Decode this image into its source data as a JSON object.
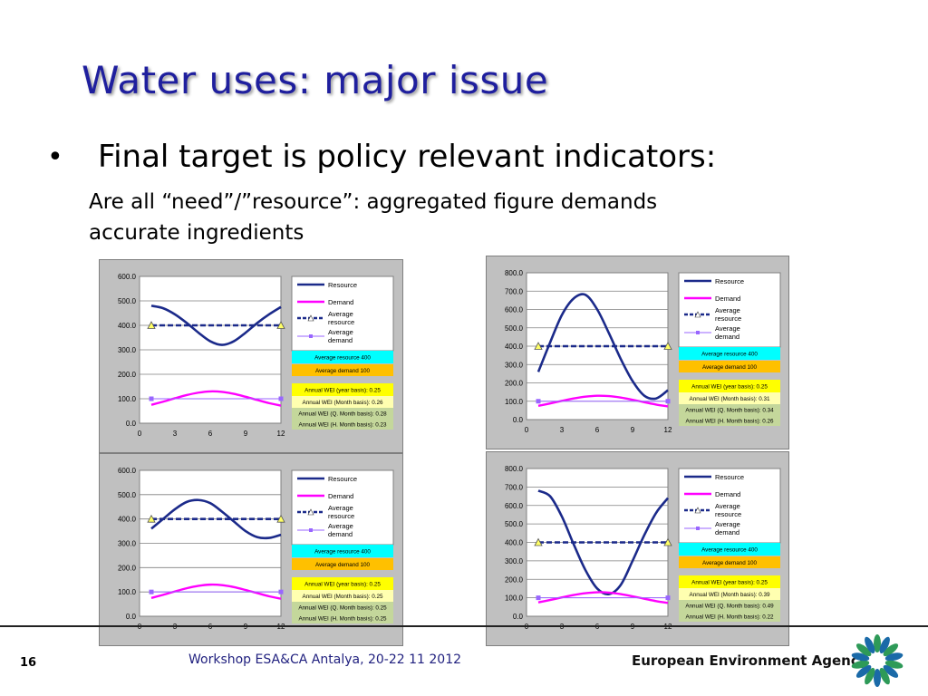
{
  "slide": {
    "title": "Water uses: major issue",
    "bullet_symbol": "•",
    "bullet": "Final target is policy relevant indicators:",
    "sub_line1": "Are all “need”/”resource”: aggregated figure demands",
    "sub_line2": "accurate ingredients",
    "page_number": "16",
    "footer": "Workshop ESA&CA Antalya, 20-22 11 2012",
    "agency": "European Environment Agency",
    "logo_icon": "eea-logo-icon"
  },
  "colors": {
    "resource": "#1b2a8a",
    "demand": "#ff00ff",
    "avg_resource": "#1b2a8a",
    "avg_demand": "#9966ff",
    "box_cyan": "#00ffff",
    "box_orange": "#ffc000",
    "box_yellow": "#ffff00",
    "box_pale": "#ffffb0",
    "box_green": "#c4d79b",
    "logo_green": "#2e9a58",
    "logo_blue": "#1a6aa8"
  },
  "legend": [
    "Resource",
    "Demand",
    "Average resource",
    "Average demand"
  ],
  "chart_data": [
    {
      "type": "line",
      "x": [
        1,
        2,
        3,
        4,
        5,
        6,
        7,
        8,
        9,
        10,
        11,
        12
      ],
      "ylim": [
        0,
        600
      ],
      "yticks": [
        "600.0",
        "500.0",
        "400.0",
        "300.0",
        "200.0",
        "100.0",
        "0.0"
      ],
      "xticks": [
        "0",
        "3",
        "6",
        "9",
        "12"
      ],
      "series": [
        {
          "name": "Resource",
          "values": [
            480,
            470,
            445,
            410,
            370,
            335,
            320,
            335,
            370,
            410,
            445,
            475
          ]
        },
        {
          "name": "Demand",
          "values": [
            75,
            88,
            102,
            115,
            125,
            130,
            128,
            120,
            108,
            95,
            82,
            72
          ]
        },
        {
          "name": "Average resource",
          "values": [
            400,
            400,
            400,
            400,
            400,
            400,
            400,
            400,
            400,
            400,
            400,
            400
          ]
        },
        {
          "name": "Average demand",
          "values": [
            100,
            100,
            100,
            100,
            100,
            100,
            100,
            100,
            100,
            100,
            100,
            100
          ]
        }
      ],
      "info": [
        "Average resource 400",
        "Average demand 100",
        "Annual WEI (year basis): 0.25",
        "Annual WEI (Month basis): 0.26",
        "Annual WEI (Q. Month basis): 0.28",
        "Annual WEI (H. Month basis): 0.23"
      ]
    },
    {
      "type": "line",
      "x": [
        1,
        2,
        3,
        4,
        5,
        6,
        7,
        8,
        9,
        10,
        11,
        12
      ],
      "ylim": [
        0,
        800
      ],
      "yticks": [
        "800.0",
        "700.0",
        "600.0",
        "500.0",
        "400.0",
        "300.0",
        "200.0",
        "100.0",
        "0.0"
      ],
      "xticks": [
        "0",
        "3",
        "6",
        "9",
        "12"
      ],
      "series": [
        {
          "name": "Resource",
          "values": [
            260,
            420,
            570,
            660,
            680,
            600,
            470,
            330,
            210,
            130,
            115,
            160
          ]
        },
        {
          "name": "Demand",
          "values": [
            75,
            88,
            102,
            115,
            125,
            130,
            128,
            120,
            108,
            95,
            82,
            72
          ]
        },
        {
          "name": "Average resource",
          "values": [
            400,
            400,
            400,
            400,
            400,
            400,
            400,
            400,
            400,
            400,
            400,
            400
          ]
        },
        {
          "name": "Average demand",
          "values": [
            100,
            100,
            100,
            100,
            100,
            100,
            100,
            100,
            100,
            100,
            100,
            100
          ]
        }
      ],
      "info": [
        "Average resource 400",
        "Average demand 100",
        "Annual WEI (year basis): 0.25",
        "Annual WEI (Month basis): 0.31",
        "Annual WEI (Q. Month basis): 0.34",
        "Annual WEI (H. Month basis): 0.26"
      ]
    },
    {
      "type": "line",
      "x": [
        1,
        2,
        3,
        4,
        5,
        6,
        7,
        8,
        9,
        10,
        11,
        12
      ],
      "ylim": [
        0,
        600
      ],
      "yticks": [
        "600.0",
        "500.0",
        "400.0",
        "300.0",
        "200.0",
        "100.0",
        "0.0"
      ],
      "xticks": [
        "0",
        "3",
        "6",
        "9",
        "12"
      ],
      "series": [
        {
          "name": "Resource",
          "values": [
            360,
            400,
            440,
            470,
            478,
            465,
            430,
            390,
            350,
            325,
            322,
            335
          ]
        },
        {
          "name": "Demand",
          "values": [
            75,
            88,
            102,
            115,
            125,
            130,
            128,
            120,
            108,
            95,
            82,
            72
          ]
        },
        {
          "name": "Average resource",
          "values": [
            400,
            400,
            400,
            400,
            400,
            400,
            400,
            400,
            400,
            400,
            400,
            400
          ]
        },
        {
          "name": "Average demand",
          "values": [
            100,
            100,
            100,
            100,
            100,
            100,
            100,
            100,
            100,
            100,
            100,
            100
          ]
        }
      ],
      "info": [
        "Average resource 400",
        "Average demand 100",
        "Annual WEI (year basis): 0.25",
        "Annual WEI (Month basis): 0.25",
        "Annual WEI (Q. Month basis): 0.25",
        "Annual WEI (H. Month basis): 0.25"
      ]
    },
    {
      "type": "line",
      "x": [
        1,
        2,
        3,
        4,
        5,
        6,
        7,
        8,
        9,
        10,
        11,
        12
      ],
      "ylim": [
        0,
        800
      ],
      "yticks": [
        "800.0",
        "700.0",
        "600.0",
        "500.0",
        "400.0",
        "300.0",
        "200.0",
        "100.0",
        "0.0"
      ],
      "xticks": [
        "0",
        "3",
        "6",
        "9",
        "12"
      ],
      "series": [
        {
          "name": "Resource",
          "values": [
            680,
            650,
            540,
            390,
            250,
            150,
            120,
            170,
            300,
            440,
            560,
            640
          ]
        },
        {
          "name": "Demand",
          "values": [
            75,
            88,
            102,
            115,
            125,
            130,
            128,
            120,
            108,
            95,
            82,
            72
          ]
        },
        {
          "name": "Average resource",
          "values": [
            400,
            400,
            400,
            400,
            400,
            400,
            400,
            400,
            400,
            400,
            400,
            400
          ]
        },
        {
          "name": "Average demand",
          "values": [
            100,
            100,
            100,
            100,
            100,
            100,
            100,
            100,
            100,
            100,
            100,
            100
          ]
        }
      ],
      "info": [
        "Average resource 400",
        "Average demand 100",
        "Annual WEI (year basis): 0.25",
        "Annual WEI (Month basis): 0.39",
        "Annual WEI (Q. Month basis): 0.49",
        "Annual WEI (H. Month basis): 0.22"
      ]
    }
  ]
}
